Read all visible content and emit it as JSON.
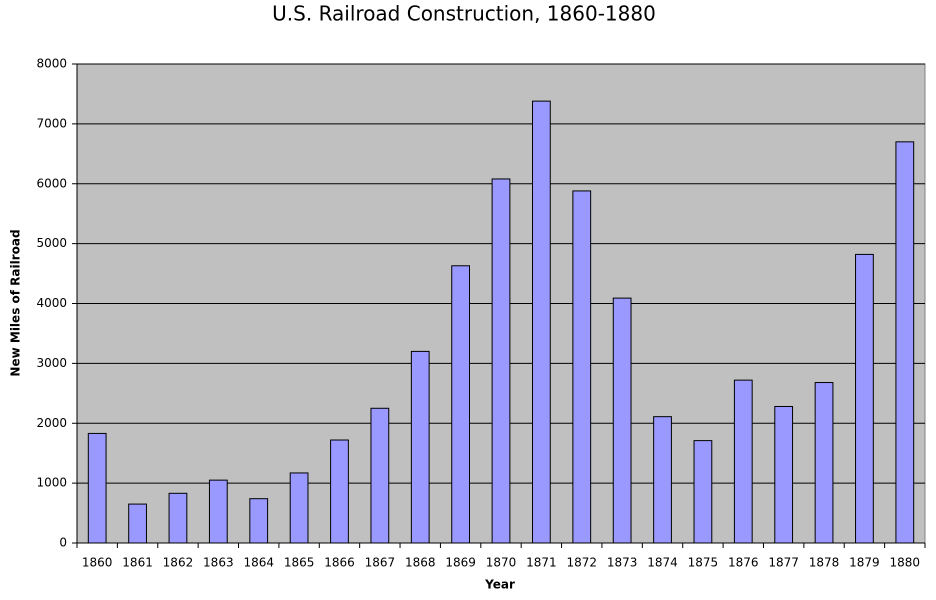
{
  "chart_data": {
    "type": "bar",
    "title": "U.S. Railroad Construction, 1860-1880",
    "x_label": "Year",
    "y_label": "New Miles of Railroad",
    "categories": [
      "1860",
      "1861",
      "1862",
      "1863",
      "1864",
      "1865",
      "1866",
      "1867",
      "1868",
      "1869",
      "1870",
      "1871",
      "1872",
      "1873",
      "1874",
      "1875",
      "1876",
      "1877",
      "1878",
      "1879",
      "1880"
    ],
    "values": [
      1830,
      650,
      830,
      1050,
      740,
      1170,
      1720,
      2250,
      3200,
      4630,
      6080,
      7380,
      5880,
      4090,
      2110,
      1710,
      2720,
      2280,
      2680,
      4820,
      6700
    ],
    "color": "#9999ff",
    "ylim": [
      0,
      8000
    ],
    "yticks": [
      0,
      1000,
      2000,
      3000,
      4000,
      5000,
      6000,
      7000,
      8000
    ],
    "grid": true
  }
}
